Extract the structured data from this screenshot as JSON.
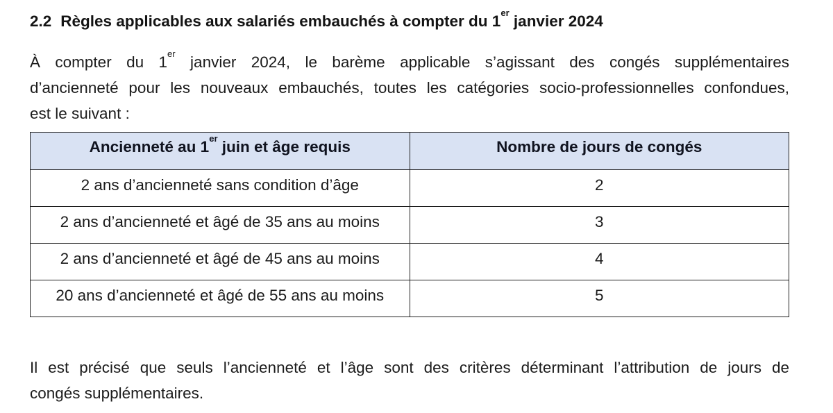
{
  "page": {
    "background": "#ffffff",
    "text_color": "#1b1b1b"
  },
  "heading": {
    "number": "2.2",
    "title_pre": "Règles applicables aux salariés embauchés à compter du 1",
    "title_sup": "er",
    "title_post": " janvier 2024"
  },
  "intro": {
    "line1_pre": "À compter du 1",
    "line1_sup": "er",
    "line1_post": " janvier 2024, le barème applicable s’agissant des congés supplémentaires",
    "line2": "d’ancienneté pour les nouveaux embauchés, toutes les catégories socio-professionnelles confondues,",
    "line3": "est le suivant :"
  },
  "table": {
    "header_bg": "#d9e2f3",
    "border_color": "#1f1f1f",
    "header": {
      "col1_pre": "Ancienneté au 1",
      "col1_sup": "er",
      "col1_post": " juin et âge requis",
      "col2": "Nombre de jours de congés"
    },
    "rows": [
      {
        "label": "2 ans d’ancienneté sans condition d’âge",
        "value": "2"
      },
      {
        "label": "2 ans d’ancienneté et âgé de 35 ans au moins",
        "value": "3"
      },
      {
        "label": "2 ans d’ancienneté et âgé de 45 ans au moins",
        "value": "4"
      },
      {
        "label": "20 ans d’ancienneté et âgé de 55 ans au moins",
        "value": "5"
      }
    ]
  },
  "closing": {
    "line1": "Il est précisé que seuls l’ancienneté et l’âge sont des critères déterminant l’attribution de jours de",
    "line2": "congés supplémentaires."
  }
}
